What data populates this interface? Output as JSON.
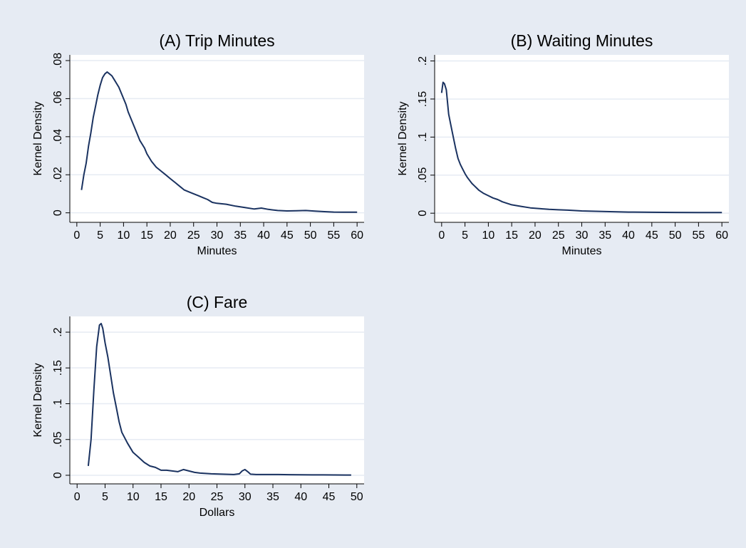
{
  "colors": {
    "background": "#e6ebf3",
    "plot_region": "#ffffff",
    "grid": "#e6ebf3",
    "line": "#1a3260",
    "text": "#000000",
    "axis": "#000000"
  },
  "chart_data": [
    {
      "type": "line",
      "title": "(A) Trip Minutes",
      "xlabel": "Minutes",
      "ylabel": "Kernel Density",
      "xlim": [
        -1.5,
        61.5
      ],
      "ylim": [
        -0.005,
        0.083
      ],
      "xticks": [
        0,
        5,
        10,
        15,
        20,
        25,
        30,
        35,
        40,
        45,
        50,
        55,
        60
      ],
      "xtick_labels": [
        "0",
        "5",
        "10",
        "15",
        "20",
        "25",
        "30",
        "35",
        "40",
        "45",
        "50",
        "55",
        "60"
      ],
      "yticks": [
        0,
        0.02,
        0.04,
        0.06,
        0.08
      ],
      "ytick_labels": [
        "0",
        ".02",
        ".04",
        ".06",
        ".08"
      ],
      "grid": true,
      "series": [
        {
          "x": [
            1,
            1.5,
            2,
            2.5,
            3,
            3.5,
            4,
            4.5,
            5,
            5.5,
            6,
            6.5,
            7,
            7.5,
            8,
            8.5,
            9,
            9.5,
            10,
            10.5,
            11,
            11.5,
            12,
            12.5,
            13,
            13.5,
            14,
            14.5,
            15,
            16,
            17,
            18,
            19,
            20,
            21,
            22,
            23,
            24,
            25,
            26,
            27,
            28,
            29,
            30,
            32,
            34,
            36,
            38,
            39.5,
            41,
            43,
            45,
            47,
            49,
            51,
            53,
            55,
            57,
            60
          ],
          "y": [
            0.012,
            0.02,
            0.026,
            0.035,
            0.042,
            0.05,
            0.056,
            0.062,
            0.067,
            0.071,
            0.073,
            0.074,
            0.073,
            0.072,
            0.07,
            0.068,
            0.066,
            0.063,
            0.06,
            0.057,
            0.053,
            0.05,
            0.047,
            0.044,
            0.041,
            0.038,
            0.036,
            0.034,
            0.031,
            0.027,
            0.024,
            0.022,
            0.02,
            0.018,
            0.016,
            0.014,
            0.012,
            0.011,
            0.01,
            0.009,
            0.008,
            0.007,
            0.0055,
            0.005,
            0.0045,
            0.0035,
            0.0028,
            0.002,
            0.0025,
            0.0018,
            0.0012,
            0.001,
            0.0011,
            0.0012,
            0.0009,
            0.0006,
            0.0004,
            0.0003,
            0.0003
          ]
        }
      ]
    },
    {
      "type": "line",
      "title": "(B) Waiting Minutes",
      "xlabel": "Minutes",
      "ylabel": "Kernel Density",
      "xlim": [
        -1.5,
        61.5
      ],
      "ylim": [
        -0.012,
        0.208
      ],
      "xticks": [
        0,
        5,
        10,
        15,
        20,
        25,
        30,
        35,
        40,
        45,
        50,
        55,
        60
      ],
      "xtick_labels": [
        "0",
        "5",
        "10",
        "15",
        "20",
        "25",
        "30",
        "35",
        "40",
        "45",
        "50",
        "55",
        "60"
      ],
      "yticks": [
        0,
        0.05,
        0.1,
        0.15,
        0.2
      ],
      "ytick_labels": [
        "0",
        ".05",
        ".1",
        ".15",
        ".2"
      ],
      "grid": true,
      "series": [
        {
          "x": [
            0,
            0.3,
            0.6,
            1,
            1.5,
            2,
            2.5,
            3,
            3.5,
            4,
            4.5,
            5,
            5.5,
            6,
            6.5,
            7,
            7.5,
            8,
            9,
            10,
            11,
            12,
            13,
            14,
            15,
            17,
            19,
            21,
            23,
            25,
            27,
            30,
            33,
            36,
            40,
            45,
            50,
            55,
            60
          ],
          "y": [
            0.158,
            0.172,
            0.17,
            0.162,
            0.13,
            0.115,
            0.1,
            0.085,
            0.072,
            0.064,
            0.058,
            0.052,
            0.047,
            0.043,
            0.039,
            0.036,
            0.033,
            0.03,
            0.026,
            0.023,
            0.02,
            0.018,
            0.015,
            0.013,
            0.011,
            0.009,
            0.007,
            0.006,
            0.005,
            0.0045,
            0.004,
            0.003,
            0.0025,
            0.002,
            0.0015,
            0.0012,
            0.001,
            0.0008,
            0.0008
          ]
        }
      ]
    },
    {
      "type": "line",
      "title": "(C) Fare",
      "xlabel": "Dollars",
      "ylabel": "Kernel Density",
      "xlim": [
        -1.3,
        51.3
      ],
      "ylim": [
        -0.012,
        0.222
      ],
      "xticks": [
        0,
        5,
        10,
        15,
        20,
        25,
        30,
        35,
        40,
        45,
        50
      ],
      "xtick_labels": [
        "0",
        "5",
        "10",
        "15",
        "20",
        "25",
        "30",
        "35",
        "40",
        "45",
        "50"
      ],
      "yticks": [
        0,
        0.05,
        0.1,
        0.15,
        0.2
      ],
      "ytick_labels": [
        "0",
        ".05",
        ".1",
        ".15",
        ".2"
      ],
      "grid": true,
      "series": [
        {
          "x": [
            2,
            2.5,
            3,
            3.5,
            4,
            4.3,
            4.6,
            5,
            5.5,
            6,
            6.5,
            7,
            7.5,
            8,
            9,
            10,
            11,
            12,
            13,
            14,
            15,
            16,
            17,
            18,
            19,
            20,
            21,
            22,
            24,
            26,
            28,
            29,
            29.5,
            30,
            30.5,
            31,
            32,
            34,
            36,
            38,
            40,
            42,
            44,
            46,
            48,
            49
          ],
          "y": [
            0.013,
            0.05,
            0.12,
            0.18,
            0.21,
            0.212,
            0.205,
            0.185,
            0.165,
            0.14,
            0.115,
            0.095,
            0.075,
            0.06,
            0.045,
            0.032,
            0.025,
            0.018,
            0.013,
            0.011,
            0.007,
            0.007,
            0.006,
            0.005,
            0.008,
            0.006,
            0.004,
            0.003,
            0.002,
            0.0015,
            0.001,
            0.002,
            0.006,
            0.008,
            0.005,
            0.0015,
            0.001,
            0.001,
            0.001,
            0.0008,
            0.0006,
            0.0005,
            0.0005,
            0.0004,
            0.0003,
            0.0003
          ]
        }
      ]
    }
  ]
}
